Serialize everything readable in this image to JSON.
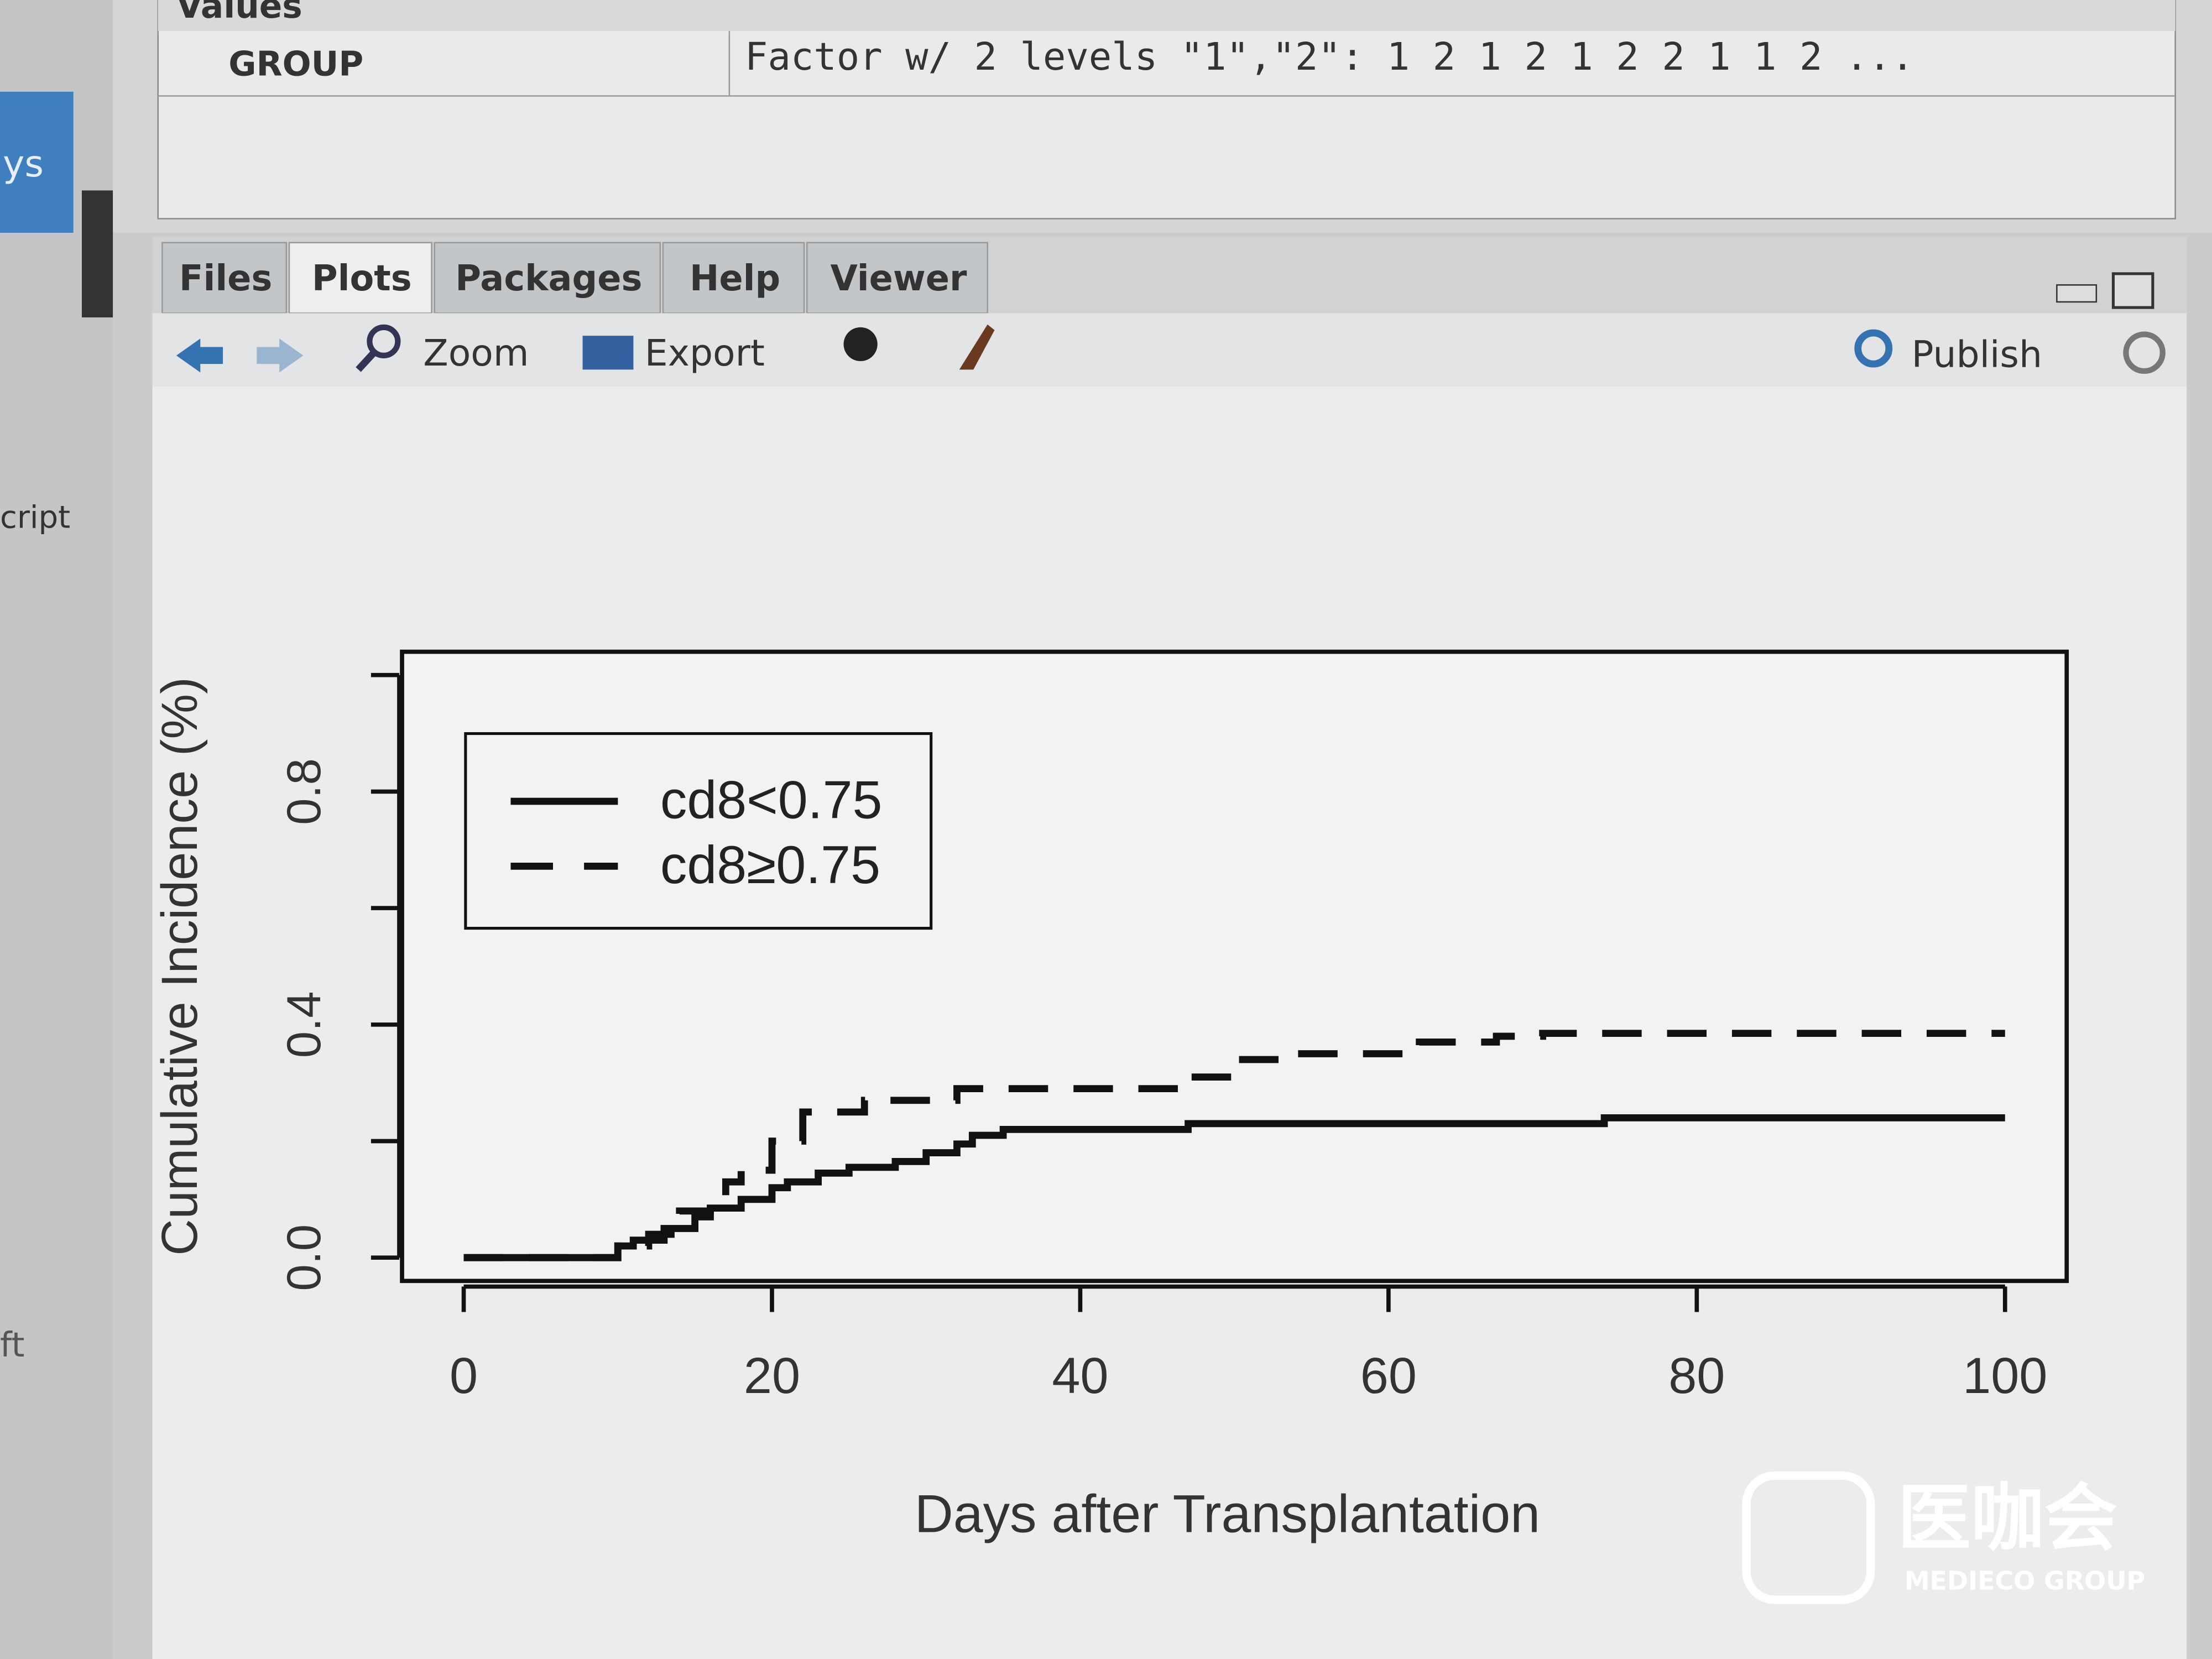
{
  "environment": {
    "section": "Values",
    "rows": [
      [
        "GROUP",
        "Factor w/ 2 levels \"1\",\"2\": 1 2 1 2 1 2 2 1 1 2 ..."
      ]
    ]
  },
  "sidebar": {
    "labels": [
      "ys",
      "cript",
      "ft"
    ]
  },
  "tabs": [
    "Files",
    "Plots",
    "Packages",
    "Help",
    "Viewer"
  ],
  "active_tab": "Plots",
  "toolbar": {
    "zoom": "Zoom",
    "export": "Export",
    "publish": "Publish"
  },
  "chart_data": {
    "type": "line",
    "step": true,
    "xlabel": "Days after Transplantation",
    "ylabel": "Cumulative Incidence (%)",
    "xlim": [
      -4,
      104
    ],
    "ylim": [
      -0.04,
      1.04
    ],
    "xticks": [
      0,
      20,
      40,
      60,
      80,
      100
    ],
    "yticks": [
      {
        "value": 0,
        "label": "0.0"
      },
      {
        "value": 0.2,
        "label": null
      },
      {
        "value": 0.4,
        "label": "0.4"
      },
      {
        "value": 0.6,
        "label": null
      },
      {
        "value": 0.8,
        "label": "0.8"
      },
      {
        "value": 1.0,
        "label": null
      }
    ],
    "legend": "top-left",
    "series": [
      {
        "name": "cd8<0.75",
        "color": "#111111",
        "dash": false,
        "x": [
          0,
          10,
          11,
          13,
          15,
          16,
          18,
          20,
          21,
          23,
          25,
          28,
          30,
          32,
          33,
          35,
          47,
          74,
          100
        ],
        "values": [
          0,
          0.02,
          0.03,
          0.05,
          0.07,
          0.085,
          0.1,
          0.12,
          0.13,
          0.145,
          0.155,
          0.165,
          0.18,
          0.195,
          0.21,
          0.22,
          0.23,
          0.24,
          0.24
        ]
      },
      {
        "name": "cd8≥0.75",
        "color": "#111111",
        "dash": true,
        "x": [
          0,
          10,
          12,
          14,
          16,
          17,
          18,
          20,
          22,
          26,
          32,
          47,
          50,
          53,
          62,
          67,
          70,
          100
        ],
        "values": [
          0,
          0.02,
          0.04,
          0.08,
          0.1,
          0.13,
          0.15,
          0.2,
          0.25,
          0.27,
          0.29,
          0.31,
          0.34,
          0.35,
          0.37,
          0.38,
          0.385,
          0.385
        ]
      }
    ]
  },
  "watermark": {
    "name": "医咖会",
    "subtitle": "MEDIECO GROUP"
  }
}
